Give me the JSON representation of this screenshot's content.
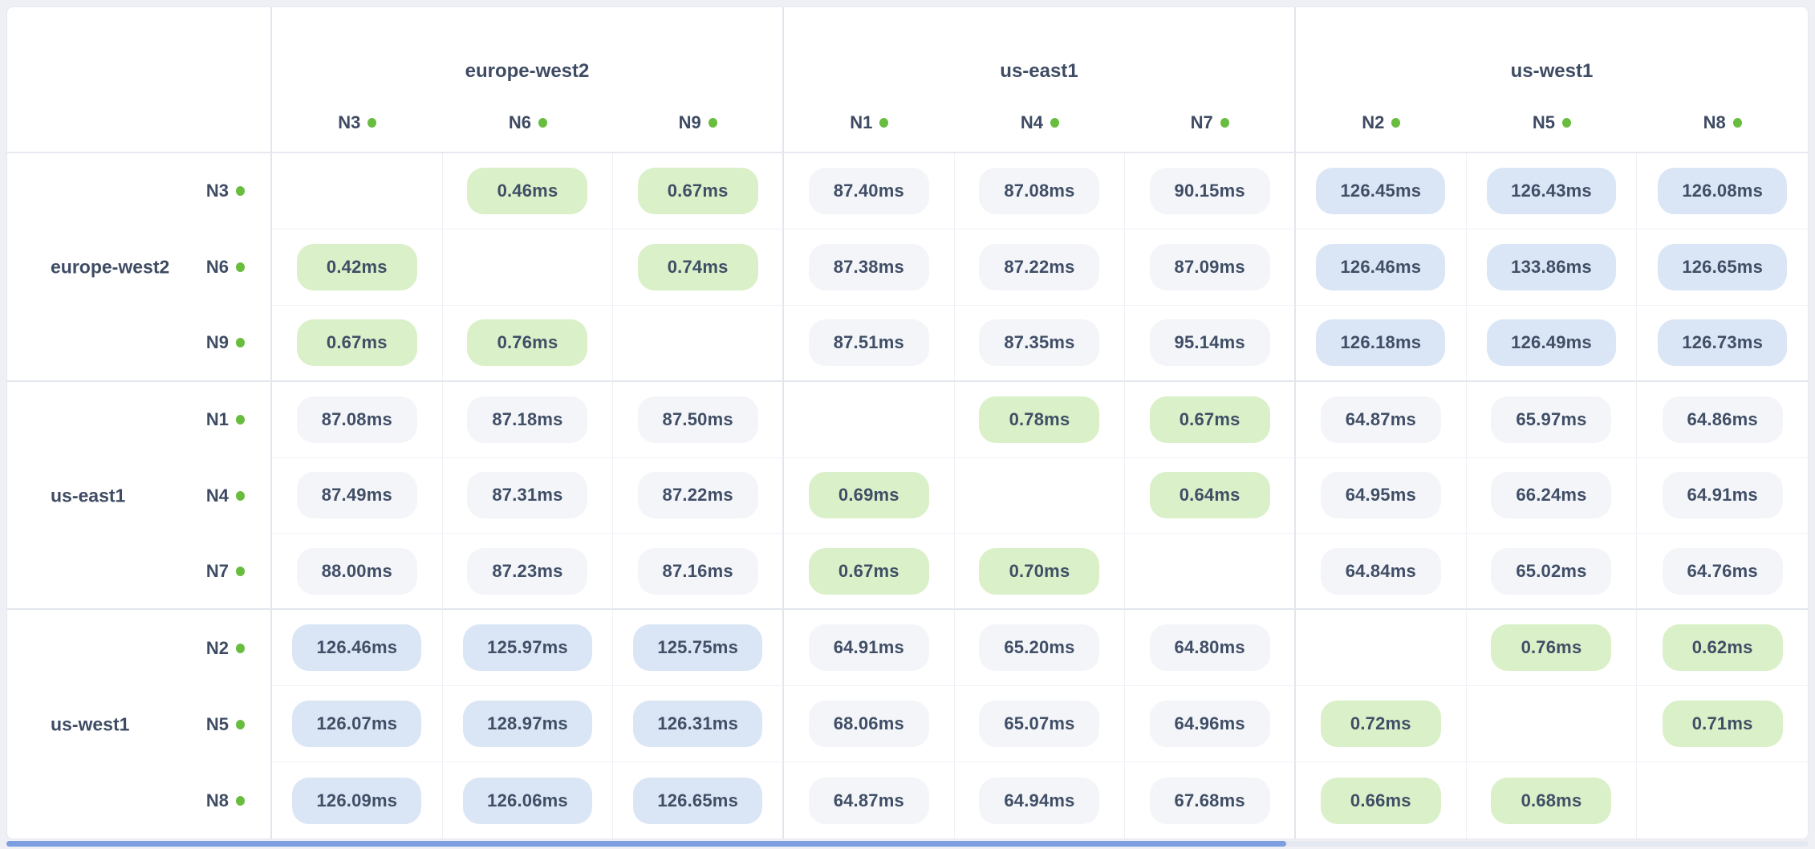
{
  "table": {
    "unit": "ms",
    "regions": [
      {
        "name": "europe-west2",
        "nodes": [
          "N3",
          "N6",
          "N9"
        ]
      },
      {
        "name": "us-east1",
        "nodes": [
          "N1",
          "N4",
          "N7"
        ]
      },
      {
        "name": "us-west1",
        "nodes": [
          "N2",
          "N5",
          "N8"
        ]
      }
    ],
    "rows": [
      {
        "region_label": "",
        "node": "N3",
        "cells": [
          null,
          "0.46ms",
          "0.67ms",
          "87.40ms",
          "87.08ms",
          "90.15ms",
          "126.45ms",
          "126.43ms",
          "126.08ms"
        ]
      },
      {
        "region_label": "europe-west2",
        "node": "N6",
        "cells": [
          "0.42ms",
          null,
          "0.74ms",
          "87.38ms",
          "87.22ms",
          "87.09ms",
          "126.46ms",
          "133.86ms",
          "126.65ms"
        ]
      },
      {
        "region_label": "",
        "node": "N9",
        "cells": [
          "0.67ms",
          "0.76ms",
          null,
          "87.51ms",
          "87.35ms",
          "95.14ms",
          "126.18ms",
          "126.49ms",
          "126.73ms"
        ]
      },
      {
        "region_label": "",
        "node": "N1",
        "cells": [
          "87.08ms",
          "87.18ms",
          "87.50ms",
          null,
          "0.78ms",
          "0.67ms",
          "64.87ms",
          "65.97ms",
          "64.86ms"
        ]
      },
      {
        "region_label": "us-east1",
        "node": "N4",
        "cells": [
          "87.49ms",
          "87.31ms",
          "87.22ms",
          "0.69ms",
          null,
          "0.64ms",
          "64.95ms",
          "66.24ms",
          "64.91ms"
        ]
      },
      {
        "region_label": "",
        "node": "N7",
        "cells": [
          "88.00ms",
          "87.23ms",
          "87.16ms",
          "0.67ms",
          "0.70ms",
          null,
          "64.84ms",
          "65.02ms",
          "64.76ms"
        ]
      },
      {
        "region_label": "",
        "node": "N2",
        "cells": [
          "126.46ms",
          "125.97ms",
          "125.75ms",
          "64.91ms",
          "65.20ms",
          "64.80ms",
          null,
          "0.76ms",
          "0.62ms"
        ]
      },
      {
        "region_label": "us-west1",
        "node": "N5",
        "cells": [
          "126.07ms",
          "128.97ms",
          "126.31ms",
          "68.06ms",
          "65.07ms",
          "64.96ms",
          "0.72ms",
          null,
          "0.71ms"
        ]
      },
      {
        "region_label": "",
        "node": "N8",
        "cells": [
          "126.09ms",
          "126.06ms",
          "126.65ms",
          "64.87ms",
          "64.94ms",
          "67.68ms",
          "0.66ms",
          "0.68ms",
          null
        ]
      }
    ],
    "tiers": {
      "low_max_ms": 10,
      "mid_max_ms": 100
    }
  },
  "colors": {
    "low_pill_bg": "#d9f0c8",
    "mid_pill_bg": "#f3f5f9",
    "high_pill_bg": "#dae6f5",
    "text": "#3e4b63",
    "status_dot": "#68bd3f",
    "scrollbar_thumb": "#7d9fe0",
    "card_bg": "#ffffff",
    "page_bg": "#eef0f5"
  }
}
